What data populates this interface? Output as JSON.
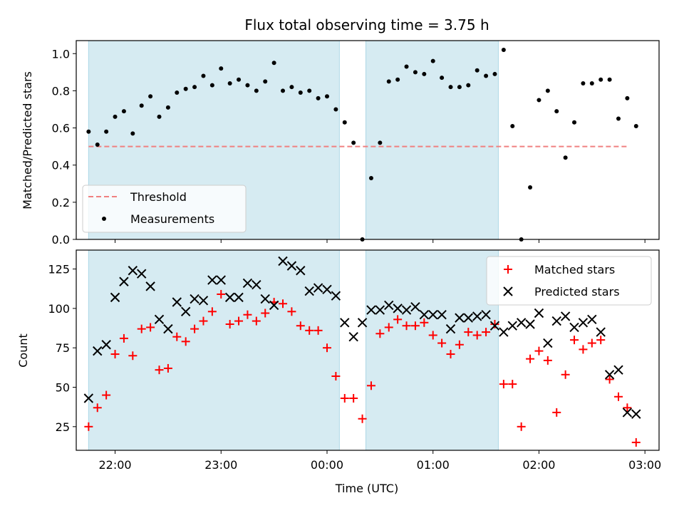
{
  "chart_data": [
    {
      "type": "scatter",
      "title": "Flux total observing time = 3.75 h",
      "xlabel": "",
      "ylabel": "Matched/Predicted stars",
      "xlim": [
        "21:38",
        "03:08"
      ],
      "ylim": [
        0,
        1.07
      ],
      "yticks": [
        "0.0",
        "0.2",
        "0.4",
        "0.6",
        "0.8",
        "1.0"
      ],
      "ytick_values": [
        0,
        0.2,
        0.4,
        0.6,
        0.8,
        1.0
      ],
      "legend": "lower-left",
      "shaded_intervals": [
        [
          "21:45",
          "00:07"
        ],
        [
          "00:22",
          "01:37"
        ]
      ],
      "threshold": {
        "name": "Threshold",
        "value": 0.5,
        "x_start": "21:45",
        "x_end": "02:50",
        "color": "#f08080"
      },
      "series": [
        {
          "name": "Measurements",
          "color": "#000000",
          "marker": "dot",
          "x": [
            "21:45",
            "21:50",
            "21:55",
            "22:00",
            "22:05",
            "22:10",
            "22:15",
            "22:20",
            "22:25",
            "22:30",
            "22:35",
            "22:40",
            "22:45",
            "22:50",
            "22:55",
            "23:00",
            "23:05",
            "23:10",
            "23:15",
            "23:20",
            "23:25",
            "23:30",
            "23:35",
            "23:40",
            "23:45",
            "23:50",
            "23:55",
            "00:00",
            "00:05",
            "00:10",
            "00:15",
            "00:20",
            "00:25",
            "00:30",
            "00:35",
            "00:40",
            "00:45",
            "00:50",
            "00:55",
            "01:00",
            "01:05",
            "01:10",
            "01:15",
            "01:20",
            "01:25",
            "01:30",
            "01:35",
            "01:40",
            "01:45",
            "01:50",
            "01:55",
            "02:00",
            "02:05",
            "02:10",
            "02:15",
            "02:20",
            "02:25",
            "02:30",
            "02:35",
            "02:40",
            "02:45",
            "02:50",
            "02:55"
          ],
          "y": [
            0.58,
            0.51,
            0.58,
            0.66,
            0.69,
            0.57,
            0.72,
            0.77,
            0.66,
            0.71,
            0.79,
            0.81,
            0.82,
            0.88,
            0.83,
            0.92,
            0.84,
            0.86,
            0.83,
            0.8,
            0.85,
            0.95,
            0.8,
            0.82,
            0.79,
            0.8,
            0.76,
            0.77,
            0.7,
            0.63,
            0.52,
            0.0,
            0.33,
            0.52,
            0.85,
            0.86,
            0.93,
            0.9,
            0.89,
            0.96,
            0.87,
            0.82,
            0.82,
            0.83,
            0.91,
            0.88,
            0.89,
            1.02,
            0.61,
            0.0,
            0.28,
            0.75,
            0.8,
            0.69,
            0.44,
            0.63,
            0.84,
            0.84,
            0.86,
            0.86,
            0.65,
            0.76,
            0.61
          ]
        }
      ]
    },
    {
      "type": "scatter",
      "xlabel": "Time (UTC)",
      "ylabel": "Count",
      "xlim": [
        "21:38",
        "03:08"
      ],
      "ylim": [
        10,
        137
      ],
      "xticks": [
        "22:00",
        "23:00",
        "00:00",
        "01:00",
        "02:00",
        "03:00"
      ],
      "yticks": [
        "25",
        "50",
        "75",
        "100",
        "125"
      ],
      "ytick_values": [
        25,
        50,
        75,
        100,
        125
      ],
      "legend": "top-right",
      "shaded_intervals": [
        [
          "21:45",
          "00:07"
        ],
        [
          "00:22",
          "01:37"
        ]
      ],
      "series": [
        {
          "name": "Matched stars",
          "color": "#ff0000",
          "marker": "plus",
          "x": [
            "21:45",
            "21:50",
            "21:55",
            "22:00",
            "22:05",
            "22:10",
            "22:15",
            "22:20",
            "22:25",
            "22:30",
            "22:35",
            "22:40",
            "22:45",
            "22:50",
            "22:55",
            "23:00",
            "23:05",
            "23:10",
            "23:15",
            "23:20",
            "23:25",
            "23:30",
            "23:35",
            "23:40",
            "23:45",
            "23:50",
            "23:55",
            "00:00",
            "00:05",
            "00:10",
            "00:15",
            "00:20",
            "00:25",
            "00:30",
            "00:35",
            "00:40",
            "00:45",
            "00:50",
            "00:55",
            "01:00",
            "01:05",
            "01:10",
            "01:15",
            "01:20",
            "01:25",
            "01:30",
            "01:35",
            "01:40",
            "01:45",
            "01:50",
            "01:55",
            "02:00",
            "02:05",
            "02:10",
            "02:15",
            "02:20",
            "02:25",
            "02:30",
            "02:35",
            "02:40",
            "02:45",
            "02:50",
            "02:55"
          ],
          "y": [
            25,
            37,
            45,
            71,
            81,
            70,
            87,
            88,
            61,
            62,
            82,
            79,
            87,
            92,
            98,
            109,
            90,
            92,
            96,
            92,
            97,
            104,
            103,
            98,
            89,
            86,
            86,
            75,
            57,
            43,
            43,
            30,
            51,
            84,
            88,
            93,
            89,
            89,
            91,
            83,
            78,
            71,
            77,
            85,
            83,
            85,
            90,
            52,
            52,
            25,
            68,
            73,
            67,
            34,
            58,
            80,
            74,
            78,
            80,
            55,
            44,
            37,
            15
          ]
        },
        {
          "name": "Predicted stars",
          "color": "#000000",
          "marker": "x",
          "x": [
            "21:45",
            "21:50",
            "21:55",
            "22:00",
            "22:05",
            "22:10",
            "22:15",
            "22:20",
            "22:25",
            "22:30",
            "22:35",
            "22:40",
            "22:45",
            "22:50",
            "22:55",
            "23:00",
            "23:05",
            "23:10",
            "23:15",
            "23:20",
            "23:25",
            "23:30",
            "23:35",
            "23:40",
            "23:45",
            "23:50",
            "23:55",
            "00:00",
            "00:05",
            "00:10",
            "00:15",
            "00:20",
            "00:25",
            "00:30",
            "00:35",
            "00:40",
            "00:45",
            "00:50",
            "00:55",
            "01:00",
            "01:05",
            "01:10",
            "01:15",
            "01:20",
            "01:25",
            "01:30",
            "01:35",
            "01:40",
            "01:45",
            "01:50",
            "01:55",
            "02:00",
            "02:05",
            "02:10",
            "02:15",
            "02:20",
            "02:25",
            "02:30",
            "02:35",
            "02:40",
            "02:45",
            "02:50",
            "02:55"
          ],
          "y": [
            43,
            73,
            77,
            107,
            117,
            124,
            122,
            114,
            93,
            87,
            104,
            98,
            106,
            105,
            118,
            118,
            107,
            107,
            116,
            115,
            106,
            102,
            130,
            127,
            124,
            111,
            113,
            112,
            108,
            91,
            82,
            91,
            99,
            99,
            102,
            100,
            99,
            101,
            96,
            96,
            96,
            87,
            94,
            94,
            95,
            96,
            89,
            85,
            89,
            91,
            90,
            97,
            78,
            92,
            95,
            88,
            91,
            93,
            85,
            58,
            61,
            34,
            33
          ]
        }
      ]
    }
  ]
}
